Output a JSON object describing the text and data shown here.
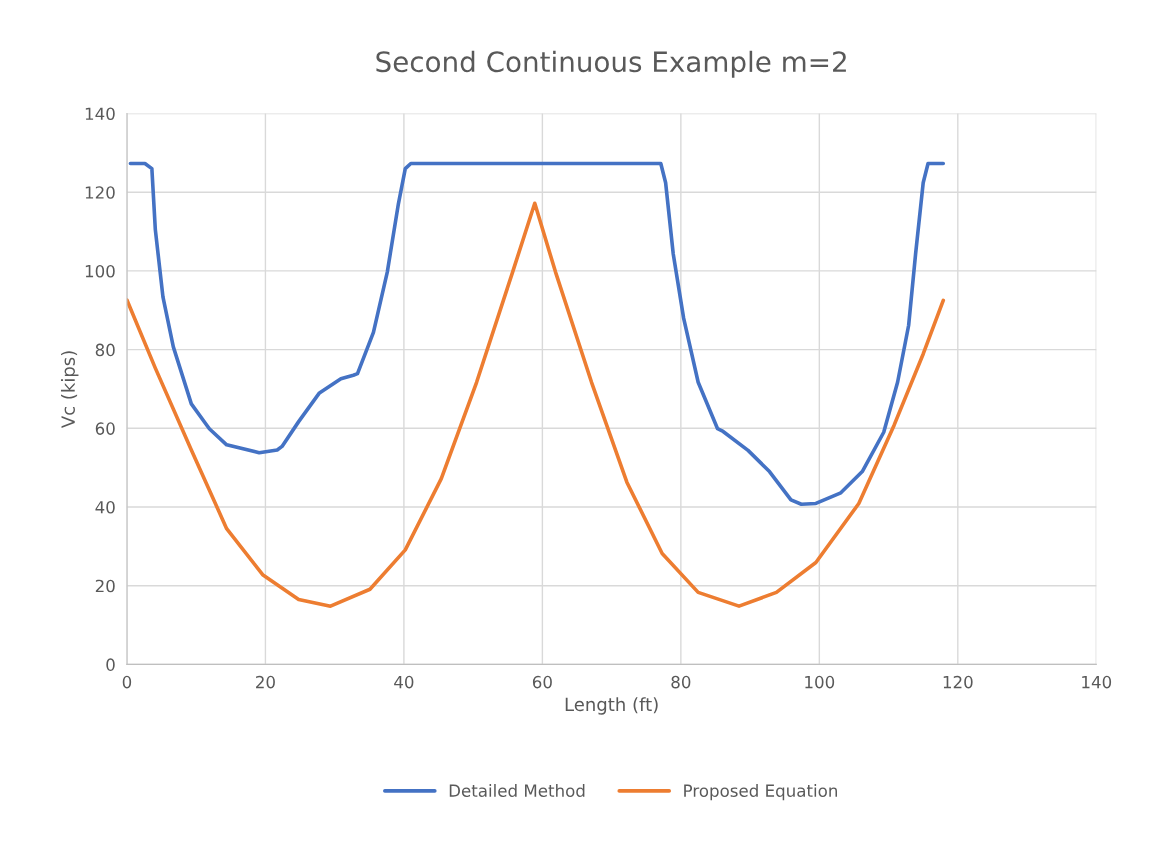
{
  "chart_data": {
    "type": "line",
    "title": "Second Continuous Example m=2",
    "xlabel": "Length (ft)",
    "ylabel": "Vc (kips)",
    "xlim": [
      0,
      140
    ],
    "xticks": [
      0,
      20,
      40,
      60,
      80,
      100,
      120,
      140
    ],
    "ylim": [
      0,
      140
    ],
    "yticks": [
      0,
      20,
      40,
      60,
      80,
      100,
      120,
      140
    ],
    "grid": true,
    "legend": "bottom",
    "marker": "none",
    "line_style": "solid",
    "series": [
      {
        "name": "Detailed Method",
        "color": "#4472c4",
        "x": [
          0.5,
          2.6,
          3.6,
          4.1,
          5.2,
          6.7,
          9.3,
          11.9,
          14.4,
          19.1,
          21.7,
          22.4,
          24.8,
          27.8,
          30.9,
          32.7,
          33.3,
          35.6,
          37.6,
          39.2,
          40.2,
          41,
          77.1,
          77.8,
          78.9,
          80.4,
          82.5,
          85.3,
          86.1,
          89.7,
          92.8,
          95.9,
          97.4,
          99.5,
          103.1,
          106.2,
          109.3,
          111.3,
          112.9,
          113.9,
          115,
          115.7,
          117.9
        ],
        "values": [
          127.3,
          127.3,
          126,
          110.5,
          93.4,
          80.7,
          66.2,
          59.9,
          55.8,
          53.8,
          54.5,
          55.4,
          61.7,
          69,
          72.6,
          73.5,
          73.9,
          84.4,
          99.7,
          117,
          126,
          127.3,
          127.3,
          122.4,
          104.3,
          88,
          71.7,
          59.9,
          59.2,
          54.4,
          49,
          41.8,
          40.7,
          40.9,
          43.6,
          49,
          59,
          71.7,
          86.2,
          104.3,
          122.4,
          127.3,
          127.3
        ]
      },
      {
        "name": "Proposed Equation",
        "color": "#ed7d31",
        "x": [
          0,
          4.1,
          9.3,
          14.4,
          19.6,
          24.8,
          29.4,
          35.1,
          40.2,
          45.4,
          50.5,
          55.7,
          58.9,
          61.9,
          67.1,
          72.2,
          77.3,
          82.5,
          88.4,
          93.8,
          99.5,
          105.7,
          110.8,
          115,
          117.9
        ],
        "values": [
          92.6,
          75.3,
          54.5,
          34.5,
          22.8,
          16.5,
          14.8,
          19.1,
          29.1,
          47.2,
          71.7,
          99.7,
          117.2,
          99.7,
          71.7,
          46.3,
          28.2,
          18.3,
          14.8,
          18.3,
          25.9,
          40.9,
          60.8,
          78.9,
          92.5
        ]
      }
    ]
  }
}
